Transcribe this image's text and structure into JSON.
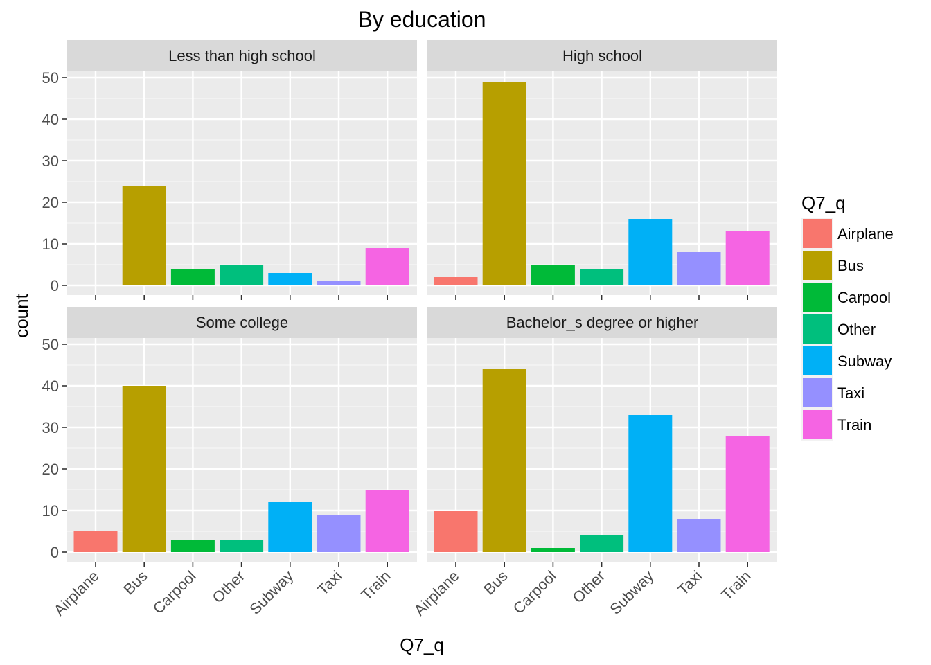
{
  "chart_data": {
    "type": "bar",
    "title": "By education",
    "xlabel": "Q7_q",
    "ylabel": "count",
    "ylim": [
      0,
      50
    ],
    "yticks": [
      0,
      10,
      20,
      30,
      40,
      50
    ],
    "grid": true,
    "legend_position": "right",
    "legend_title": "Q7_q",
    "categories": [
      "Airplane",
      "Bus",
      "Carpool",
      "Other",
      "Subway",
      "Taxi",
      "Train"
    ],
    "colors": {
      "Airplane": "#F8766D",
      "Bus": "#B79F00",
      "Carpool": "#00BA38",
      "Other": "#00BF7D",
      "Subway": "#00B0F6",
      "Taxi": "#9590FF",
      "Train": "#F564E3"
    },
    "panels": [
      {
        "label": "Less than high school",
        "values": [
          0,
          24,
          4,
          5,
          3,
          1,
          9
        ]
      },
      {
        "label": "High school",
        "values": [
          2,
          49,
          5,
          4,
          16,
          8,
          13
        ]
      },
      {
        "label": "Some college",
        "values": [
          5,
          40,
          3,
          3,
          12,
          9,
          15
        ]
      },
      {
        "label": "Bachelor_s degree or higher",
        "values": [
          10,
          44,
          1,
          4,
          33,
          8,
          28
        ]
      }
    ]
  }
}
